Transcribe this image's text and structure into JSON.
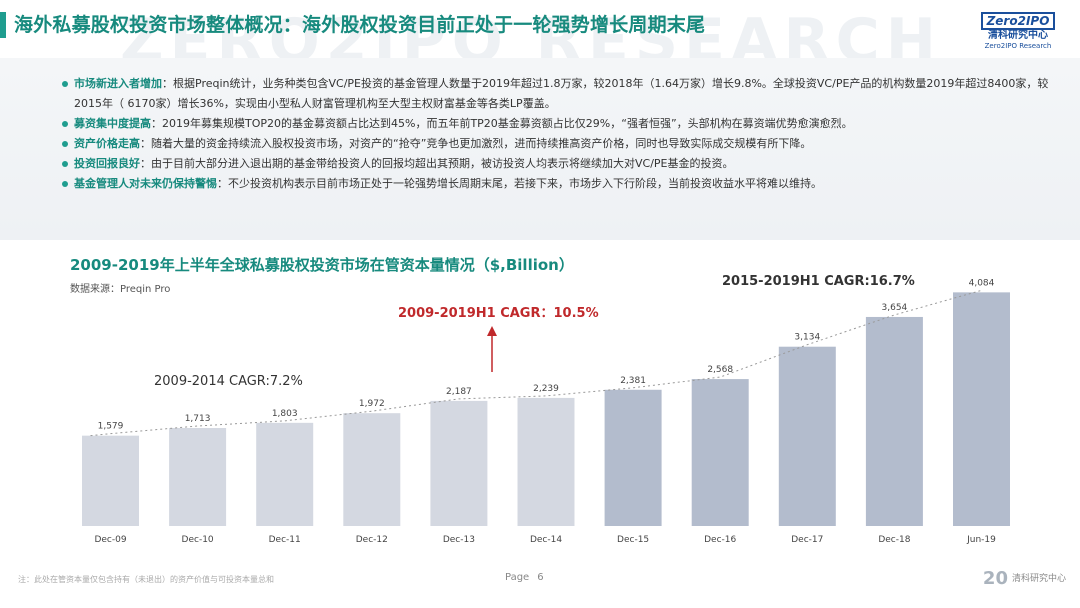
{
  "header": {
    "title": "海外私募股权投资市场整体概况：海外股权投资目前正处于一轮强势增长周期末尾",
    "watermark": "ZERO2IPO RESEARCH",
    "logo": {
      "box": "Zero2IPO",
      "cn": "清科研究中心",
      "en": "Zero2IPO Research"
    }
  },
  "bullets": [
    {
      "head": "市场新进入者增加",
      "text": "：根据Preqin统计，业务种类包含VC/PE投资的基金管理人数量于2019年超过1.8万家，较2018年（1.64万家）增长9.8%。全球投资VC/PE产品的机构数量2019年超过8400家，较2015年（ 6170家）增长36%，实现由小型私人财富管理机构至大型主权财富基金等各类LP覆盖。"
    },
    {
      "head": "募资集中度提高",
      "text": "：2019年募集规模TOP20的基金募资额占比达到45%，而五年前TP20基金募资额占比仅29%，“强者恒强”，头部机构在募资端优势愈演愈烈。"
    },
    {
      "head": "资产价格走高",
      "text": "：随着大量的资金持续流入股权投资市场，对资产的“抢夺”竞争也更加激烈，进而持续推高资产价格，同时也导致实际成交规模有所下降。"
    },
    {
      "head": "投资回报良好",
      "text": "：由于目前大部分进入退出期的基金带给投资人的回报均超出其预期，被访投资人均表示将继续加大对VC/PE基金的投资。"
    },
    {
      "head": "基金管理人对未来仍保持警惕",
      "text": "：不少投资机构表示目前市场正处于一轮强势增长周期末尾，若接下来，市场步入下行阶段，当前投资收益水平将难以维持。"
    }
  ],
  "chart_title": "2009-2019年上半年全球私募股权投资市场在管资本量情况（$,Billion）",
  "chart_source": "数据来源：Preqin Pro",
  "chart_data": {
    "type": "bar",
    "categories": [
      "Dec-09",
      "Dec-10",
      "Dec-11",
      "Dec-12",
      "Dec-13",
      "Dec-14",
      "Dec-15",
      "Dec-16",
      "Dec-17",
      "Dec-18",
      "Jun-19"
    ],
    "values": [
      1579,
      1713,
      1803,
      1972,
      2187,
      2239,
      2381,
      2568,
      3134,
      3654,
      4084
    ],
    "value_labels": [
      "1,579",
      "1,713",
      "1,803",
      "1,972",
      "2,187",
      "2,239",
      "2,381",
      "2,568",
      "3,134",
      "3,654",
      "4,084"
    ],
    "ylim": [
      0,
      4300
    ],
    "colors": {
      "early": "#d4d8e1",
      "late": "#b3bccd",
      "trend": "#999999"
    },
    "annotations": [
      {
        "text": "2009-2014 CAGR:7.2%",
        "color": "#333333"
      },
      {
        "text": "2009-2019H1 CAGR：10.5%",
        "color": "#c0292b"
      },
      {
        "text": "2015-2019H1 CAGR:16.7%",
        "color": "#333333"
      }
    ]
  },
  "footer": {
    "note": "注：此处在管资本量仅包含持有（未退出）的资产价值与可投资本量总和",
    "page_label": "Page",
    "page_number": "6",
    "brand_mark": "20",
    "brand": "清科研究中心"
  }
}
